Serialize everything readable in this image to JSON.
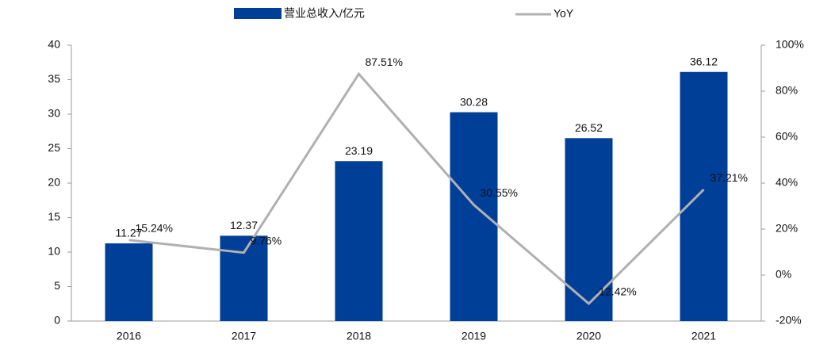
{
  "chart_data": {
    "type": "bar_line",
    "categories": [
      "2016",
      "2017",
      "2018",
      "2019",
      "2020",
      "2021"
    ],
    "series": [
      {
        "name": "营业总收入/亿元",
        "color": "#003f98",
        "values": [
          11.27,
          12.37,
          23.19,
          30.28,
          26.52,
          36.12
        ]
      },
      {
        "name": "YoY",
        "color": "#b0b0b0",
        "axis": "y2",
        "values": [
          15.24,
          9.76,
          87.51,
          30.55,
          -12.42,
          37.21
        ],
        "value_labels": [
          "15.24%",
          "9.76%",
          "87.51%",
          "30.55%",
          "-12.42%",
          "37.21%"
        ]
      }
    ],
    "ylim": [
      0,
      40
    ],
    "yticks": [
      0,
      5,
      10,
      15,
      20,
      25,
      30,
      35,
      40
    ],
    "y2lim": [
      -20,
      100
    ],
    "y2ticks": [
      {
        "value": -20,
        "label": "-20%"
      },
      {
        "value": 0,
        "label": "0%"
      },
      {
        "value": 20,
        "label": "20%"
      },
      {
        "value": 40,
        "label": "40%"
      },
      {
        "value": 60,
        "label": "60%"
      },
      {
        "value": 80,
        "label": "80%"
      },
      {
        "value": 100,
        "label": "100%"
      }
    ],
    "legend": "top"
  }
}
